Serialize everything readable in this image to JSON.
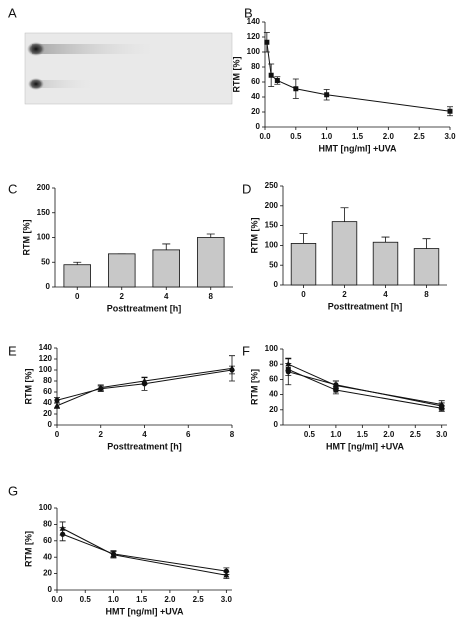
{
  "gel": {
    "label": "A"
  },
  "chart_data": [
    {
      "type": "line",
      "label": "B",
      "xlabel": "HMT [ng/ml] +UVA",
      "ylabel": "RTM [%]",
      "x": [
        0.03,
        0.1,
        0.2,
        0.5,
        1.0,
        3.0
      ],
      "series": [
        {
          "color": "#111111",
          "marker": "square",
          "values": [
            113,
            69,
            62,
            51,
            43,
            21
          ],
          "errors": [
            13,
            15,
            5,
            13,
            7,
            6
          ]
        }
      ],
      "xlim": [
        0,
        3
      ],
      "ylim": [
        0,
        140
      ],
      "xticks": [
        {
          "value": 0,
          "label": "0.0"
        },
        0.5,
        {
          "value": 1,
          "label": "1.0"
        },
        1.5,
        {
          "value": 2,
          "label": "2.0"
        },
        2.5,
        {
          "value": 3,
          "label": "3.0"
        }
      ],
      "yticks": [
        0,
        20,
        40,
        60,
        80,
        100,
        120,
        140
      ]
    },
    {
      "type": "bar",
      "label": "C",
      "xlabel": "Posttreatment [h]",
      "ylabel": "RTM [%]",
      "categories": [
        "0",
        "2",
        "4",
        "8"
      ],
      "values": [
        45,
        67,
        75,
        100
      ],
      "errors": [
        5,
        0,
        12,
        7
      ],
      "color": "#c8c8c8",
      "ylim": [
        0,
        200
      ],
      "yticks": [
        0,
        50,
        100,
        150,
        200
      ]
    },
    {
      "type": "bar",
      "label": "D",
      "xlabel": "Posttreatment [h]",
      "ylabel": "RTM [%]",
      "categories": [
        "0",
        "2",
        "4",
        "8"
      ],
      "values": [
        105,
        160,
        108,
        92
      ],
      "errors": [
        25,
        35,
        13,
        25
      ],
      "color": "#c8c8c8",
      "ylim": [
        0,
        250
      ],
      "yticks": [
        0,
        50,
        100,
        150,
        200,
        250
      ]
    },
    {
      "type": "line",
      "label": "E",
      "xlabel": "Posttreatment [h]",
      "ylabel": "RTM [%]",
      "x": [
        0,
        2,
        4,
        8
      ],
      "series": [
        {
          "color": "#111111",
          "marker": "circle",
          "values": [
            45,
            66,
            75,
            100
          ],
          "errors": [
            5,
            5,
            12,
            7
          ]
        },
        {
          "color": "#111111",
          "marker": "triangle",
          "values": [
            35,
            68,
            80,
            103
          ],
          "errors": [
            5,
            5,
            6,
            23
          ]
        }
      ],
      "xlim": [
        0,
        8
      ],
      "ylim": [
        0,
        140
      ],
      "xticks": [
        0,
        2,
        4,
        6,
        8
      ],
      "yticks": [
        0,
        20,
        40,
        60,
        80,
        100,
        120,
        140
      ]
    },
    {
      "type": "line",
      "label": "F",
      "xlabel": "HMT [ng/ml] +UVA",
      "ylabel": "RTM [%]",
      "x": [
        0.1,
        1.0,
        3.0
      ],
      "series": [
        {
          "color": "#111111",
          "marker": "square",
          "values": [
            73,
            46,
            22
          ],
          "errors": [
            8,
            5,
            4
          ]
        },
        {
          "color": "#111111",
          "marker": "triangle",
          "values": [
            80,
            52,
            27
          ],
          "errors": [
            8,
            6,
            5
          ]
        },
        {
          "color": "#111111",
          "marker": "circle",
          "values": [
            70,
            53,
            25
          ],
          "errors": [
            17,
            5,
            4
          ]
        }
      ],
      "xlim": [
        0,
        3.1
      ],
      "ylim": [
        0,
        100
      ],
      "xticks": [
        0.5,
        {
          "value": 1,
          "label": "1.0"
        },
        1.5,
        {
          "value": 2,
          "label": "2.0"
        },
        2.5,
        {
          "value": 3,
          "label": "3.0"
        }
      ],
      "yticks": [
        0,
        20,
        40,
        60,
        80,
        100
      ]
    },
    {
      "type": "line",
      "label": "G",
      "xlabel": "HMT [ng/ml] +UVA",
      "ylabel": "RTM [%]",
      "x": [
        0.1,
        1.0,
        3.0
      ],
      "series": [
        {
          "color": "#111111",
          "marker": "circle",
          "values": [
            68,
            44,
            23
          ],
          "errors": [
            8,
            4,
            4
          ]
        },
        {
          "color": "#111111",
          "marker": "triangle",
          "values": [
            75,
            43,
            18
          ],
          "errors": [
            8,
            4,
            4
          ]
        }
      ],
      "xlim": [
        0,
        3.1
      ],
      "ylim": [
        0,
        100
      ],
      "xticks": [
        {
          "value": 0,
          "label": "0.0"
        },
        0.5,
        {
          "value": 1,
          "label": "1.0"
        },
        1.5,
        {
          "value": 2,
          "label": "2.0"
        },
        2.5,
        {
          "value": 3,
          "label": "3.0"
        }
      ],
      "yticks": [
        0,
        20,
        40,
        60,
        80,
        100
      ]
    }
  ]
}
